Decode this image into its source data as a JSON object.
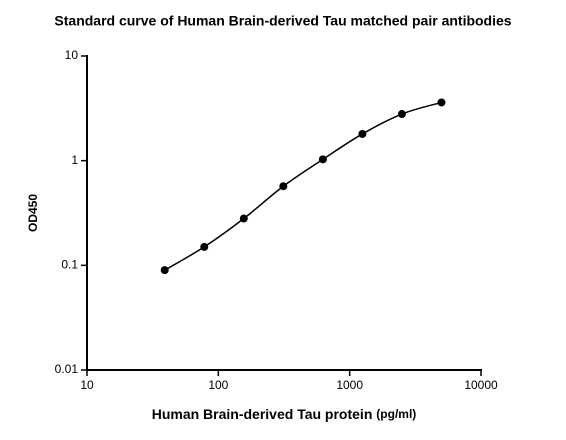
{
  "chart_data": {
    "type": "scatter",
    "title": "Standard curve of Human Brain-derived Tau matched pair antibodies",
    "x_label": "Human Brain-derived Tau protein",
    "x_unit": "(pg/ml)",
    "y_label": "OD450",
    "x": [
      39.06,
      78.125,
      156.25,
      312.5,
      625,
      1250,
      2500,
      5000
    ],
    "series": [
      {
        "color": "#000000",
        "values": [
          0.09,
          0.15,
          0.28,
          0.57,
          1.03,
          1.8,
          2.79,
          3.6
        ]
      }
    ],
    "xlim": [
      10,
      10000
    ],
    "xticks": [
      10,
      100,
      1000,
      10000
    ],
    "ylim": [
      0.01,
      10
    ],
    "yticks": [
      0.01,
      0.1,
      1,
      10
    ],
    "log_x": true,
    "log_y": true,
    "fit_curve": true
  }
}
